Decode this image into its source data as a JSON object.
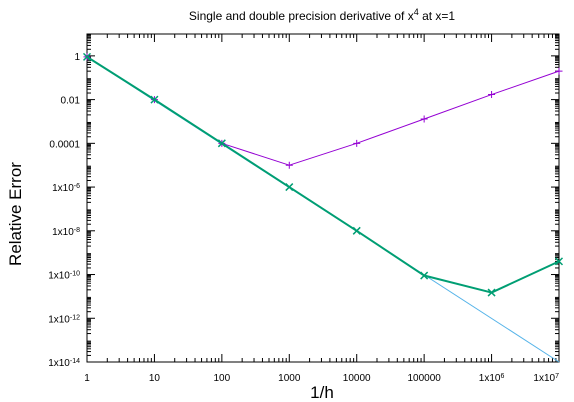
{
  "chart_data": {
    "type": "line",
    "title": "Single and double precision derivative of x",
    "title_superscript": "4",
    "title_suffix": " at x=1",
    "xlabel": "1/h",
    "ylabel": "Relative Error",
    "x_scale": "log",
    "y_scale": "log",
    "xlim": [
      1,
      10000000
    ],
    "ylim": [
      1e-14,
      10
    ],
    "grid": false,
    "legend": "none",
    "x_ticks": [
      {
        "value": 1,
        "label": "1"
      },
      {
        "value": 10,
        "label": "10"
      },
      {
        "value": 100,
        "label": "100"
      },
      {
        "value": 1000,
        "label": "1000"
      },
      {
        "value": 10000,
        "label": "10000"
      },
      {
        "value": 100000,
        "label": "100000"
      },
      {
        "value": 1000000,
        "label": "1x10",
        "sup": "6"
      },
      {
        "value": 10000000,
        "label": "1x10",
        "sup": "7"
      }
    ],
    "y_ticks": [
      {
        "value": 1,
        "label": "1"
      },
      {
        "value": 0.01,
        "label": "0.01"
      },
      {
        "value": 0.0001,
        "label": "0.0001"
      },
      {
        "value": 1e-06,
        "label": "1x10",
        "sup": "-6"
      },
      {
        "value": 1e-08,
        "label": "1x10",
        "sup": "-8"
      },
      {
        "value": 1e-10,
        "label": "1x10",
        "sup": "-10"
      },
      {
        "value": 1e-12,
        "label": "1x10",
        "sup": "-12"
      },
      {
        "value": 1e-14,
        "label": "1x10",
        "sup": "-14"
      }
    ],
    "series": [
      {
        "color": "#9400d3",
        "marker": "plus",
        "line_width": 1,
        "x": [
          1,
          10,
          100,
          1000,
          10000,
          100000,
          1000000,
          10000000
        ],
        "y": [
          0.9,
          0.01,
          0.0001,
          1e-05,
          0.0001,
          0.0013,
          0.017,
          0.2
        ]
      },
      {
        "color": "#009e73",
        "marker": "cross",
        "line_width": 2,
        "x": [
          1,
          10,
          100,
          1000,
          10000,
          100000,
          1000000,
          10000000
        ],
        "y": [
          0.9,
          0.01,
          0.0001,
          1e-06,
          1e-08,
          9e-11,
          1.5e-11,
          4e-10
        ]
      },
      {
        "color": "#56b4e9",
        "marker": "none",
        "line_width": 1,
        "x": [
          1,
          10000000
        ],
        "y": [
          0.9,
          1e-14
        ]
      }
    ]
  }
}
